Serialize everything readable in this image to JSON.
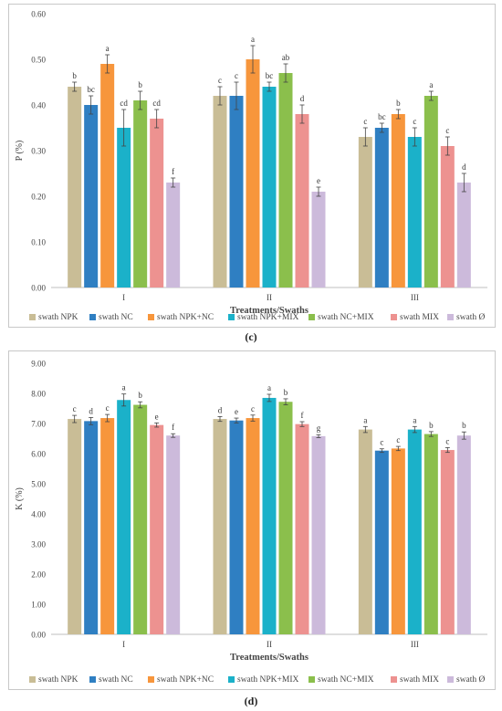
{
  "captions": [
    "(c)",
    "(d)"
  ],
  "colors": {
    "swath NPK": "#c9bd96",
    "swath NC": "#2f7fc2",
    "swath NPK+NC": "#f7963c",
    "swath NPK+MIX": "#1bb1c9",
    "swath NC+MIX": "#8bbf4c",
    "swath MIX": "#ed9290",
    "swath Ø": "#ccbadb"
  },
  "chart_data": [
    {
      "type": "bar",
      "caption": "(c)",
      "xlabel": "Treatments/Swaths",
      "ylabel": "P (%)",
      "ylim": [
        0,
        0.6
      ],
      "yticks": [
        "0.00",
        "0.10",
        "0.20",
        "0.30",
        "0.40",
        "0.50",
        "0.60"
      ],
      "categories": [
        "I",
        "II",
        "III"
      ],
      "legend_position": "bottom",
      "grid": false,
      "series": [
        {
          "name": "swath NPK",
          "values": [
            0.44,
            0.42,
            0.33
          ],
          "errors": [
            0.01,
            0.02,
            0.02
          ],
          "letters": [
            "b",
            "c",
            "c"
          ]
        },
        {
          "name": "swath NC",
          "values": [
            0.4,
            0.42,
            0.35
          ],
          "errors": [
            0.02,
            0.03,
            0.01
          ],
          "letters": [
            "bc",
            "c",
            "bc"
          ]
        },
        {
          "name": "swath NPK+NC",
          "values": [
            0.49,
            0.5,
            0.38
          ],
          "errors": [
            0.02,
            0.03,
            0.01
          ],
          "letters": [
            "a",
            "a",
            "b"
          ]
        },
        {
          "name": "swath NPK+MIX",
          "values": [
            0.35,
            0.44,
            0.33
          ],
          "errors": [
            0.04,
            0.01,
            0.02
          ],
          "letters": [
            "cd",
            "bc",
            "c"
          ]
        },
        {
          "name": "swath NC+MIX",
          "values": [
            0.41,
            0.47,
            0.42
          ],
          "errors": [
            0.02,
            0.02,
            0.01
          ],
          "letters": [
            "b",
            "ab",
            "a"
          ]
        },
        {
          "name": "swath MIX",
          "values": [
            0.37,
            0.38,
            0.31
          ],
          "errors": [
            0.02,
            0.02,
            0.02
          ],
          "letters": [
            "cd",
            "d",
            "c"
          ]
        },
        {
          "name": "swath Ø",
          "values": [
            0.23,
            0.21,
            0.23
          ],
          "errors": [
            0.01,
            0.01,
            0.02
          ],
          "letters": [
            "f",
            "e",
            "d"
          ]
        }
      ]
    },
    {
      "type": "bar",
      "caption": "(d)",
      "xlabel": "Treatments/Swaths",
      "ylabel": "K (%)",
      "ylim": [
        0,
        9
      ],
      "yticks": [
        "0.00",
        "1.00",
        "2.00",
        "3.00",
        "4.00",
        "5.00",
        "6.00",
        "7.00",
        "8.00",
        "9.00"
      ],
      "categories": [
        "I",
        "II",
        "III"
      ],
      "legend_position": "bottom",
      "grid": false,
      "series": [
        {
          "name": "swath NPK",
          "values": [
            7.15,
            7.15,
            6.8
          ],
          "errors": [
            0.12,
            0.08,
            0.1
          ],
          "letters": [
            "c",
            "d",
            "a"
          ]
        },
        {
          "name": "swath NC",
          "values": [
            7.08,
            7.1,
            6.1
          ],
          "errors": [
            0.12,
            0.08,
            0.06
          ],
          "letters": [
            "d",
            "e",
            "c"
          ]
        },
        {
          "name": "swath NPK+NC",
          "values": [
            7.18,
            7.18,
            6.17
          ],
          "errors": [
            0.12,
            0.1,
            0.07
          ],
          "letters": [
            "c",
            "c",
            "c"
          ]
        },
        {
          "name": "swath NPK+MIX",
          "values": [
            7.78,
            7.85,
            6.8
          ],
          "errors": [
            0.2,
            0.12,
            0.1
          ],
          "letters": [
            "a",
            "a",
            "a"
          ]
        },
        {
          "name": "swath NC+MIX",
          "values": [
            7.62,
            7.72,
            6.65
          ],
          "errors": [
            0.1,
            0.1,
            0.08
          ],
          "letters": [
            "b",
            "b",
            "b"
          ]
        },
        {
          "name": "swath MIX",
          "values": [
            6.95,
            6.98,
            6.12
          ],
          "errors": [
            0.07,
            0.08,
            0.08
          ],
          "letters": [
            "e",
            "f",
            "c"
          ]
        },
        {
          "name": "swath Ø",
          "values": [
            6.6,
            6.58,
            6.6
          ],
          "errors": [
            0.06,
            0.05,
            0.12
          ],
          "letters": [
            "f",
            "g",
            "b"
          ]
        }
      ]
    }
  ]
}
